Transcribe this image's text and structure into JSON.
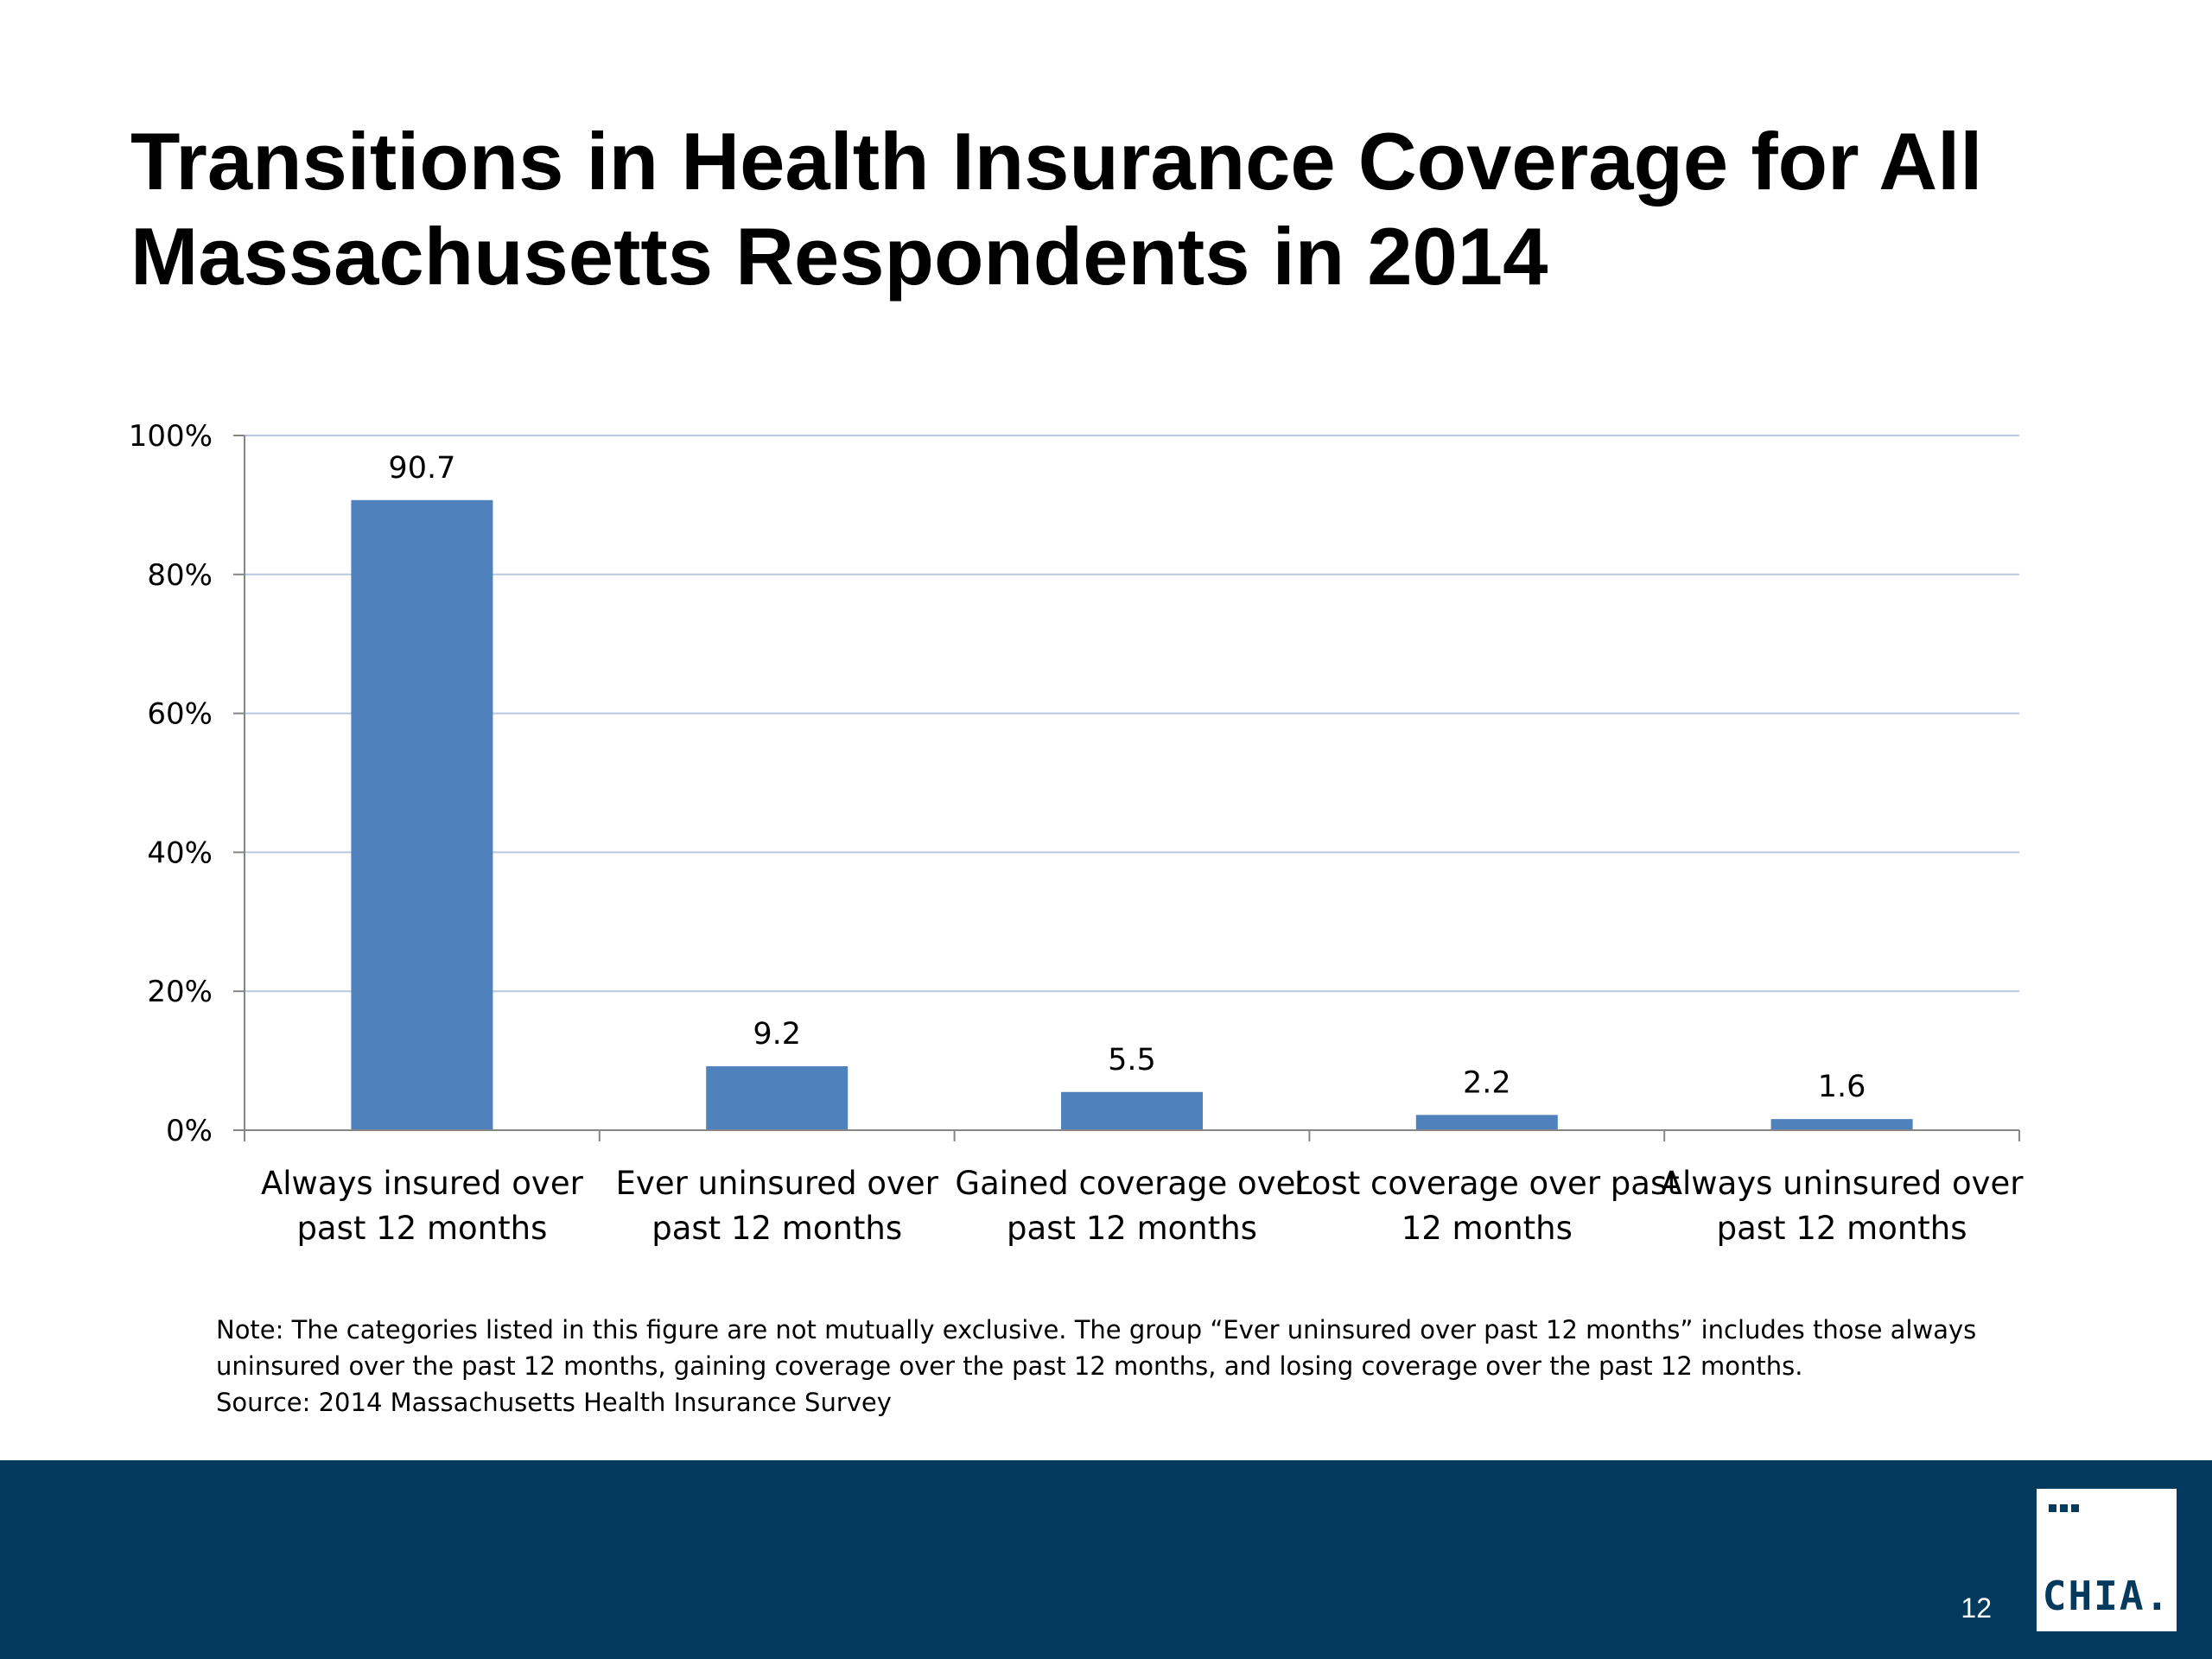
{
  "slide": {
    "title_lines": [
      "Transitions in Health Insurance Coverage for All",
      "Massachusetts Respondents in 2014"
    ],
    "notes": [
      "Note: The categories listed in this figure are not mutually exclusive. The group “Ever uninsured over past 12 months” includes those always",
      "uninsured over the past 12 months, gaining coverage over the past 12 months, and losing coverage over the past 12 months.",
      "Source:  2014 Massachusetts Health Insurance Survey"
    ],
    "page_number": "12",
    "logo_text": "CHIA."
  },
  "colors": {
    "bar": "#4f81bd",
    "gridline": "#b9c8e0",
    "axis": "#868686",
    "footer_band": "#033a5e"
  },
  "chart_data": {
    "type": "bar",
    "title": "",
    "xlabel": "",
    "ylabel": "",
    "categories": [
      [
        "Always insured over",
        "past 12 months"
      ],
      [
        "Ever uninsured over",
        "past 12 months"
      ],
      [
        "Gained coverage over",
        "past 12 months"
      ],
      [
        "Lost coverage over past",
        "12 months"
      ],
      [
        "Always uninsured over",
        "past 12 months"
      ]
    ],
    "values": [
      90.7,
      9.2,
      5.5,
      2.2,
      1.6
    ],
    "data_labels": [
      "90.7",
      "9.2",
      "5.5",
      "2.2",
      "1.6"
    ],
    "ylim": [
      0,
      100
    ],
    "yticks": [
      0,
      20,
      40,
      60,
      80,
      100
    ],
    "ytick_labels": [
      "0%",
      "20%",
      "40%",
      "60%",
      "80%",
      "100%"
    ],
    "grid": true,
    "legend": "none"
  }
}
